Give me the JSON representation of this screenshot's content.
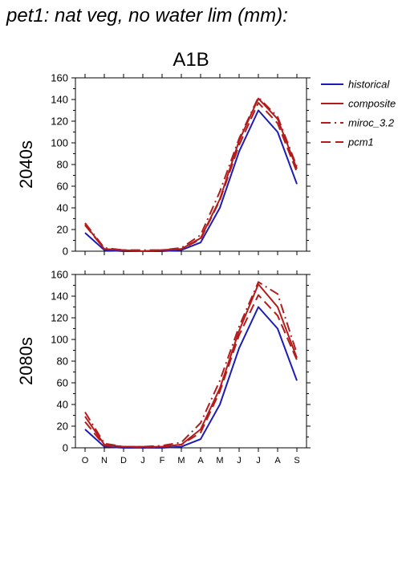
{
  "title": "pet1: nat veg, no water lim (mm):",
  "chart_data": [
    {
      "type": "line",
      "scenario": "A1B",
      "row_label": "2040s",
      "categories": [
        "O",
        "N",
        "D",
        "J",
        "F",
        "M",
        "A",
        "M",
        "J",
        "J",
        "A",
        "S"
      ],
      "ylim": [
        0,
        160
      ],
      "yticks": [
        0,
        20,
        40,
        60,
        80,
        100,
        120,
        140,
        160
      ],
      "series": [
        {
          "name": "historical",
          "color": "#1c1cb4",
          "dash": "solid",
          "values": [
            17,
            1,
            0,
            0,
            0,
            1,
            8,
            40,
            92,
            130,
            110,
            62
          ]
        },
        {
          "name": "composite",
          "color": "#b41c1c",
          "dash": "solid",
          "values": [
            25,
            2,
            1,
            0,
            1,
            2,
            12,
            48,
            102,
            141,
            122,
            76
          ]
        },
        {
          "name": "miroc_3.2",
          "color": "#b41c1c",
          "dash": "dashdot",
          "values": [
            26,
            3,
            1,
            1,
            1,
            3,
            15,
            55,
            104,
            142,
            124,
            78
          ]
        },
        {
          "name": "pcm1",
          "color": "#b41c1c",
          "dash": "dash",
          "values": [
            24,
            2,
            1,
            0,
            1,
            2,
            11,
            47,
            98,
            137,
            118,
            73
          ]
        }
      ]
    },
    {
      "type": "line",
      "scenario": "",
      "row_label": "2080s",
      "categories": [
        "O",
        "N",
        "D",
        "J",
        "F",
        "M",
        "A",
        "M",
        "J",
        "J",
        "A",
        "S"
      ],
      "ylim": [
        0,
        160
      ],
      "yticks": [
        0,
        20,
        40,
        60,
        80,
        100,
        120,
        140,
        160
      ],
      "series": [
        {
          "name": "historical",
          "color": "#1c1cb4",
          "dash": "solid",
          "values": [
            17,
            1,
            0,
            0,
            0,
            1,
            8,
            40,
            92,
            130,
            110,
            62
          ]
        },
        {
          "name": "composite",
          "color": "#b41c1c",
          "dash": "solid",
          "values": [
            29,
            3,
            1,
            1,
            1,
            3,
            17,
            55,
            108,
            151,
            130,
            83
          ]
        },
        {
          "name": "miroc_3.2",
          "color": "#b41c1c",
          "dash": "dashdot",
          "values": [
            33,
            4,
            1,
            1,
            2,
            5,
            23,
            62,
            112,
            153,
            142,
            87
          ]
        },
        {
          "name": "pcm1",
          "color": "#b41c1c",
          "dash": "dash",
          "values": [
            24,
            2,
            1,
            0,
            1,
            3,
            14,
            52,
            104,
            141,
            122,
            81
          ]
        }
      ]
    }
  ],
  "legend": {
    "placement": "right",
    "entries": [
      {
        "name": "historical",
        "color": "#1c1cb4",
        "dash": "solid"
      },
      {
        "name": "composite",
        "color": "#b41c1c",
        "dash": "solid"
      },
      {
        "name": "miroc_3.2",
        "color": "#b41c1c",
        "dash": "dashdot"
      },
      {
        "name": "pcm1",
        "color": "#b41c1c",
        "dash": "dash"
      }
    ]
  }
}
